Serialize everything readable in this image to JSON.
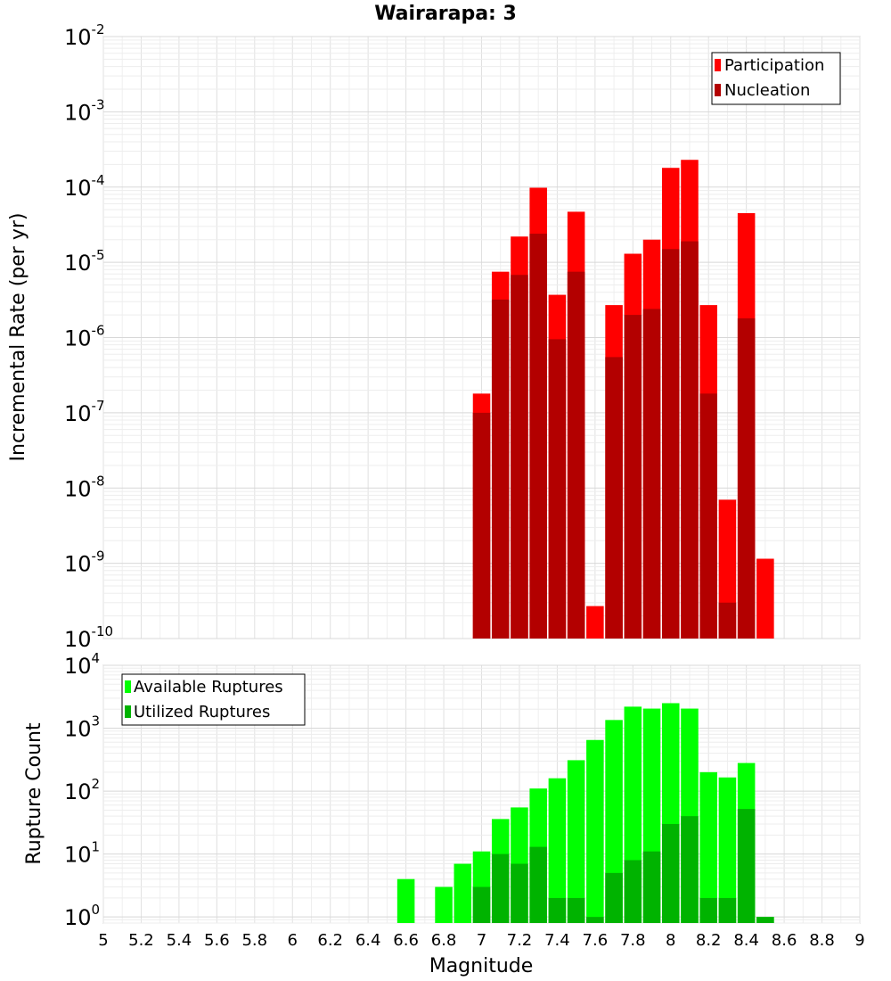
{
  "chart_data": [
    {
      "type": "bar",
      "title": "Wairarapa: 3",
      "xlabel": "",
      "ylabel": "Incremental Rate (per yr)",
      "yscale": "log",
      "ylim": [
        1e-10,
        0.01
      ],
      "xlim": [
        5,
        9
      ],
      "grid": true,
      "legend_position": "top-right",
      "series": [
        {
          "name": "Participation",
          "color": "#ff0000",
          "x": [
            7.0,
            7.1,
            7.2,
            7.3,
            7.4,
            7.5,
            7.6,
            7.7,
            7.8,
            7.9,
            8.0,
            8.1,
            8.2,
            8.3,
            8.4,
            8.5
          ],
          "values": [
            1.8e-07,
            7.5e-06,
            2.2e-05,
            9.8e-05,
            3.7e-06,
            4.7e-05,
            2.7e-10,
            2.7e-06,
            1.3e-05,
            2e-05,
            0.00018,
            0.00023,
            2.7e-06,
            7e-09,
            4.5e-05,
            1.15e-09
          ]
        },
        {
          "name": "Nucleation",
          "color": "#b30000",
          "x": [
            7.0,
            7.1,
            7.2,
            7.3,
            7.4,
            7.5,
            7.7,
            7.8,
            7.9,
            8.0,
            8.1,
            8.2,
            8.3,
            8.4
          ],
          "values": [
            1e-07,
            3.2e-06,
            6.8e-06,
            2.4e-05,
            9.5e-07,
            7.5e-06,
            5.5e-07,
            2e-06,
            2.4e-06,
            1.5e-05,
            1.9e-05,
            1.8e-07,
            3e-10,
            1.8e-06
          ]
        }
      ]
    },
    {
      "type": "bar",
      "title": "",
      "xlabel": "Magnitude",
      "ylabel": "Rupture Count",
      "yscale": "log",
      "ylim": [
        0.8,
        10000
      ],
      "xlim": [
        5,
        9
      ],
      "grid": true,
      "legend_position": "top-left",
      "series": [
        {
          "name": "Available Ruptures",
          "color": "#00ff00",
          "x": [
            6.6,
            6.8,
            6.9,
            7.0,
            7.1,
            7.2,
            7.3,
            7.4,
            7.5,
            7.6,
            7.7,
            7.8,
            7.9,
            8.0,
            8.1,
            8.2,
            8.3,
            8.4,
            8.5
          ],
          "values": [
            4,
            3,
            7,
            11,
            36,
            55,
            110,
            160,
            310,
            650,
            1350,
            2200,
            2050,
            2500,
            2050,
            200,
            165,
            280,
            1
          ]
        },
        {
          "name": "Utilized Ruptures",
          "color": "#00b300",
          "x": [
            7.0,
            7.1,
            7.2,
            7.3,
            7.4,
            7.5,
            7.6,
            7.7,
            7.8,
            7.9,
            8.0,
            8.1,
            8.2,
            8.3,
            8.4,
            8.5
          ],
          "values": [
            3,
            10,
            7,
            13,
            2,
            2,
            1,
            5,
            8,
            11,
            30,
            40,
            2,
            2,
            52,
            1
          ]
        }
      ]
    }
  ],
  "x_ticks": [
    "5",
    "5.2",
    "5.4",
    "5.6",
    "5.8",
    "6",
    "6.2",
    "6.4",
    "6.6",
    "6.8",
    "7",
    "7.2",
    "7.4",
    "7.6",
    "7.8",
    "8",
    "8.2",
    "8.4",
    "8.6",
    "8.8",
    "9"
  ],
  "top_y_ticks": [
    {
      "base": "10",
      "exp": "-2"
    },
    {
      "base": "10",
      "exp": "-3"
    },
    {
      "base": "10",
      "exp": "-4"
    },
    {
      "base": "10",
      "exp": "-5"
    },
    {
      "base": "10",
      "exp": "-6"
    },
    {
      "base": "10",
      "exp": "-7"
    },
    {
      "base": "10",
      "exp": "-8"
    },
    {
      "base": "10",
      "exp": "-9"
    },
    {
      "base": "10",
      "exp": "-10"
    }
  ],
  "bottom_y_ticks": [
    {
      "base": "10",
      "exp": "4"
    },
    {
      "base": "10",
      "exp": "3"
    },
    {
      "base": "10",
      "exp": "2"
    },
    {
      "base": "10",
      "exp": "1"
    },
    {
      "base": "10",
      "exp": "0"
    }
  ]
}
